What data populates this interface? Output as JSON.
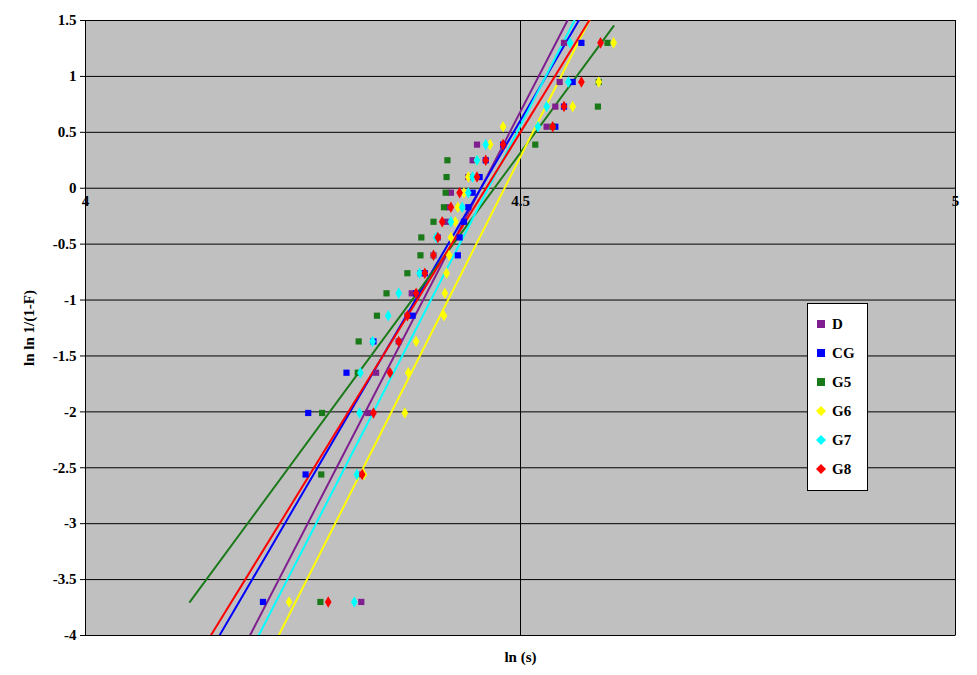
{
  "chart_data": {
    "type": "scatter",
    "x_label": "ln (s)",
    "y_label": "ln ln 1/(1-F)",
    "xlim": [
      4,
      5
    ],
    "ylim": [
      -4,
      1.5
    ],
    "xticks": [
      4,
      4.5,
      5
    ],
    "yticks": [
      -4,
      -3.5,
      -3,
      -2.5,
      -2,
      -1.5,
      -1,
      -0.5,
      0,
      0.5,
      1,
      1.5
    ],
    "grid": true,
    "legend": "right",
    "series": [
      {
        "name": "D",
        "color": "#7f1f8f",
        "marker": "square",
        "x": [
          4.317,
          4.318,
          4.325,
          4.334,
          4.36,
          4.37,
          4.375,
          4.385,
          4.4,
          4.405,
          4.415,
          4.418,
          4.42,
          4.44,
          4.445,
          4.45,
          4.53,
          4.54,
          4.545,
          4.55
        ],
        "values": [
          -3.7,
          -2.56,
          -2.01,
          -1.65,
          -1.37,
          -1.14,
          -0.94,
          -0.76,
          -0.6,
          -0.44,
          -0.3,
          -0.17,
          -0.04,
          0.1,
          0.25,
          0.39,
          0.55,
          0.73,
          0.95,
          1.3
        ],
        "trendline": {
          "x": [
            4.189,
            4.554
          ],
          "values": [
            -4,
            1.5
          ]
        }
      },
      {
        "name": "CG",
        "color": "#0000ff",
        "marker": "square",
        "x": [
          4.204,
          4.253,
          4.256,
          4.3,
          4.331,
          4.376,
          4.38,
          4.39,
          4.428,
          4.43,
          4.435,
          4.44,
          4.445,
          4.453,
          4.46,
          4.48,
          4.54,
          4.55,
          4.56,
          4.57
        ],
        "values": [
          -3.7,
          -2.56,
          -2.01,
          -1.65,
          -1.37,
          -1.14,
          -0.94,
          -0.76,
          -0.6,
          -0.44,
          -0.3,
          -0.17,
          -0.04,
          0.1,
          0.25,
          0.39,
          0.55,
          0.73,
          0.95,
          1.3
        ],
        "trendline": {
          "x": [
            4.154,
            4.567
          ],
          "values": [
            -4,
            1.5
          ]
        }
      },
      {
        "name": "G5",
        "color": "#1a7a1a",
        "marker": "square",
        "x": [
          4.27,
          4.271,
          4.272,
          4.313,
          4.314,
          4.335,
          4.346,
          4.37,
          4.385,
          4.386,
          4.4,
          4.412,
          4.414,
          4.415,
          4.416,
          4.517,
          4.537,
          4.589,
          4.59,
          4.6
        ],
        "values": [
          -3.7,
          -2.56,
          -2.01,
          -1.65,
          -1.37,
          -1.14,
          -0.94,
          -0.76,
          -0.6,
          -0.44,
          -0.3,
          -0.17,
          -0.04,
          0.1,
          0.25,
          0.39,
          0.55,
          0.73,
          0.95,
          1.3
        ],
        "trendline": {
          "x": [
            4.12,
            4.607
          ],
          "values": [
            -3.7,
            1.45
          ]
        }
      },
      {
        "name": "G6",
        "color": "#ffff00",
        "marker": "diamond",
        "x": [
          4.234,
          4.32,
          4.367,
          4.371,
          4.38,
          4.412,
          4.413,
          4.415,
          4.418,
          4.42,
          4.425,
          4.428,
          4.435,
          4.44,
          4.45,
          4.465,
          4.48,
          4.56,
          4.59,
          4.607
        ],
        "values": [
          -3.7,
          -2.56,
          -2.01,
          -1.65,
          -1.37,
          -1.14,
          -0.94,
          -0.76,
          -0.6,
          -0.44,
          -0.3,
          -0.17,
          -0.04,
          0.1,
          0.25,
          0.39,
          0.55,
          0.73,
          0.95,
          1.3
        ],
        "trendline": {
          "x": [
            4.222,
            4.579
          ],
          "values": [
            -4,
            1.5
          ]
        }
      },
      {
        "name": "G7",
        "color": "#00ffff",
        "marker": "diamond",
        "x": [
          4.309,
          4.312,
          4.315,
          4.316,
          4.33,
          4.348,
          4.36,
          4.384,
          4.4,
          4.403,
          4.42,
          4.433,
          4.44,
          4.445,
          4.45,
          4.46,
          4.52,
          4.53,
          4.555,
          4.557
        ],
        "values": [
          -3.7,
          -2.56,
          -2.01,
          -1.65,
          -1.37,
          -1.14,
          -0.94,
          -0.76,
          -0.6,
          -0.44,
          -0.3,
          -0.17,
          -0.04,
          0.1,
          0.25,
          0.39,
          0.55,
          0.73,
          0.95,
          1.3
        ],
        "trendline": {
          "x": [
            4.199,
            4.562
          ],
          "values": [
            -4,
            1.5
          ]
        }
      },
      {
        "name": "G8",
        "color": "#ff0000",
        "marker": "diamond",
        "x": [
          4.279,
          4.318,
          4.331,
          4.35,
          4.36,
          4.37,
          4.38,
          4.39,
          4.4,
          4.405,
          4.41,
          4.42,
          4.43,
          4.45,
          4.46,
          4.48,
          4.537,
          4.55,
          4.57,
          4.592
        ],
        "values": [
          -3.7,
          -2.56,
          -2.01,
          -1.65,
          -1.37,
          -1.14,
          -0.94,
          -0.76,
          -0.6,
          -0.44,
          -0.3,
          -0.17,
          -0.04,
          0.1,
          0.25,
          0.39,
          0.55,
          0.73,
          0.95,
          1.3
        ],
        "trendline": {
          "x": [
            4.144,
            4.579
          ],
          "values": [
            -4,
            1.5
          ]
        }
      }
    ]
  }
}
